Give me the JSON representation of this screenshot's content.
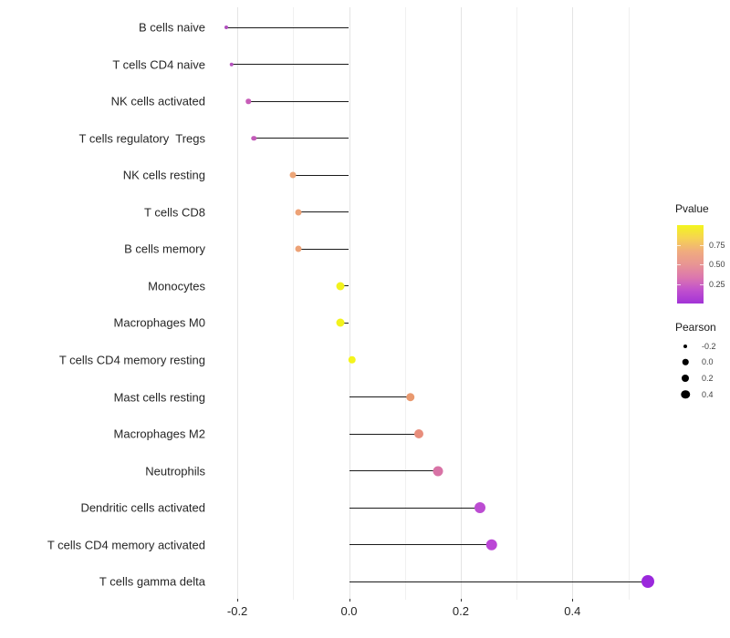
{
  "chart_data": {
    "type": "scatter",
    "subtype": "lollipop",
    "title": "",
    "xlabel": "",
    "ylabel": "",
    "xlim": [
      -0.26,
      0.57
    ],
    "x_tick_labels": [
      "-0.2",
      "0.0",
      "0.2",
      "0.4"
    ],
    "x_tick_values": [
      -0.2,
      0.0,
      0.2,
      0.4
    ],
    "x_gridlines_major": [
      -0.2,
      0.0,
      0.2,
      0.4
    ],
    "x_gridlines_minor": [
      -0.1,
      0.1,
      0.3,
      0.5
    ],
    "grid": "vertical-only",
    "legend_position": "right",
    "baseline_x": 0.0,
    "points": [
      {
        "label": "B cells naive",
        "pearson": -0.22,
        "color": "#B04FBE",
        "diameter": 4
      },
      {
        "label": "T cells CD4 naive",
        "pearson": -0.21,
        "color": "#B652BE",
        "diameter": 4.5
      },
      {
        "label": "NK cells activated",
        "pearson": -0.18,
        "color": "#C75DB8",
        "diameter": 5.5
      },
      {
        "label": "T cells regulatory  Tregs",
        "pearson": -0.17,
        "color": "#C25AB8",
        "diameter": 5.5
      },
      {
        "label": "NK cells resting",
        "pearson": -0.1,
        "color": "#EDA678",
        "diameter": 7
      },
      {
        "label": "T cells CD8",
        "pearson": -0.09,
        "color": "#EDA276",
        "diameter": 7
      },
      {
        "label": "B cells memory",
        "pearson": -0.09,
        "color": "#EDA276",
        "diameter": 7
      },
      {
        "label": "Monocytes",
        "pearson": -0.015,
        "color": "#F2F21D",
        "diameter": 9
      },
      {
        "label": "Macrophages M0",
        "pearson": -0.015,
        "color": "#F2F21D",
        "diameter": 9
      },
      {
        "label": "T cells CD4 memory resting",
        "pearson": 0.005,
        "color": "#F4F41C",
        "diameter": 8.5
      },
      {
        "label": "Mast cells resting",
        "pearson": 0.11,
        "color": "#E9996F",
        "diameter": 9.5
      },
      {
        "label": "Macrophages M2",
        "pearson": 0.125,
        "color": "#E88E7C",
        "diameter": 10
      },
      {
        "label": "Neutrophils",
        "pearson": 0.16,
        "color": "#D873A6",
        "diameter": 11
      },
      {
        "label": "Dendritic cells activated",
        "pearson": 0.235,
        "color": "#BC4CD2",
        "diameter": 12
      },
      {
        "label": "T cells CD4 memory activated",
        "pearson": 0.255,
        "color": "#BB46D6",
        "diameter": 12.5
      },
      {
        "label": "T cells gamma delta",
        "pearson": 0.535,
        "color": "#9A28DC",
        "diameter": 14
      }
    ]
  },
  "legend": {
    "pvalue": {
      "title": "Pvalue",
      "range_top": 1.0,
      "range_bottom": 0.0,
      "ticks": [
        {
          "label": "0.75",
          "value": 0.75
        },
        {
          "label": "0.50",
          "value": 0.5
        },
        {
          "label": "0.25",
          "value": 0.25
        }
      ],
      "gradient_top_to_bottom": [
        "#F3F51D",
        "#F6D353",
        "#F0AC7E",
        "#E89593",
        "#DC77AE",
        "#C050CE",
        "#A233D6"
      ]
    },
    "pearson": {
      "title": "Pearson",
      "items": [
        {
          "label": "-0.2",
          "diameter": 4
        },
        {
          "label": "0.0",
          "diameter": 6.5
        },
        {
          "label": "0.2",
          "diameter": 8
        },
        {
          "label": "0.4",
          "diameter": 9.5
        }
      ]
    }
  },
  "colors": {
    "segment": "#1a1a1a",
    "grid_major": "#e4e4e4",
    "grid_minor": "#f0f0f0",
    "axis_text": "#262626",
    "background": "#ffffff"
  }
}
